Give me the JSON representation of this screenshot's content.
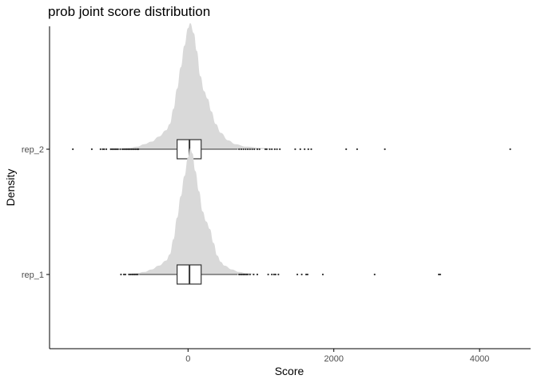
{
  "chart_data": {
    "type": "ridgeline-boxplot",
    "title": "prob joint score distribution",
    "xlabel": "Score",
    "ylabel": "Density",
    "xlim": [
      -1900,
      4700
    ],
    "x_ticks": [
      0,
      2000,
      4000
    ],
    "categories": [
      "rep_1",
      "rep_2"
    ],
    "grid": false,
    "density_color": "#d9d9d9",
    "box_stroke": "#333333",
    "outlier_color": "#333333",
    "series": [
      {
        "name": "rep_1",
        "box": {
          "q1": -150,
          "median": 20,
          "q3": 180,
          "whisker_low": -670,
          "whisker_high": 680
        },
        "density": [
          [
            -900,
            0.0
          ],
          [
            -700,
            0.01
          ],
          [
            -600,
            0.02
          ],
          [
            -500,
            0.04
          ],
          [
            -400,
            0.07
          ],
          [
            -300,
            0.11
          ],
          [
            -250,
            0.16
          ],
          [
            -200,
            0.28
          ],
          [
            -150,
            0.45
          ],
          [
            -100,
            0.62
          ],
          [
            -50,
            0.78
          ],
          [
            0,
            0.93
          ],
          [
            30,
            1.0
          ],
          [
            60,
            0.96
          ],
          [
            100,
            0.82
          ],
          [
            150,
            0.66
          ],
          [
            200,
            0.5
          ],
          [
            250,
            0.42
          ],
          [
            300,
            0.36
          ],
          [
            350,
            0.25
          ],
          [
            400,
            0.15
          ],
          [
            450,
            0.1
          ],
          [
            500,
            0.07
          ],
          [
            600,
            0.04
          ],
          [
            700,
            0.02
          ],
          [
            800,
            0.01
          ],
          [
            1000,
            0.0
          ]
        ],
        "outliers": [
          -920,
          -880,
          -860,
          -810,
          -790,
          -770,
          -750,
          -730,
          -710,
          -690,
          700,
          720,
          740,
          760,
          780,
          800,
          820,
          850,
          900,
          950,
          1100,
          1150,
          1180,
          1200,
          1240,
          1500,
          1560,
          1620,
          1640,
          1850,
          2560,
          3440,
          3460
        ]
      },
      {
        "name": "rep_2",
        "box": {
          "q1": -150,
          "median": 20,
          "q3": 180,
          "whisker_low": -670,
          "whisker_high": 680
        },
        "density": [
          [
            -1000,
            0.0
          ],
          [
            -800,
            0.01
          ],
          [
            -700,
            0.02
          ],
          [
            -600,
            0.04
          ],
          [
            -500,
            0.06
          ],
          [
            -400,
            0.1
          ],
          [
            -300,
            0.15
          ],
          [
            -250,
            0.2
          ],
          [
            -200,
            0.32
          ],
          [
            -150,
            0.48
          ],
          [
            -100,
            0.65
          ],
          [
            -50,
            0.82
          ],
          [
            0,
            0.96
          ],
          [
            30,
            1.0
          ],
          [
            80,
            0.92
          ],
          [
            120,
            0.78
          ],
          [
            170,
            0.58
          ],
          [
            220,
            0.46
          ],
          [
            270,
            0.4
          ],
          [
            320,
            0.3
          ],
          [
            380,
            0.2
          ],
          [
            450,
            0.13
          ],
          [
            550,
            0.07
          ],
          [
            650,
            0.04
          ],
          [
            800,
            0.02
          ],
          [
            1000,
            0.01
          ],
          [
            1200,
            0.0
          ]
        ],
        "outliers": [
          -1580,
          -1320,
          -1200,
          -1170,
          -1150,
          -1120,
          -1060,
          -1040,
          -1020,
          -1000,
          -980,
          -960,
          -930,
          -900,
          -880,
          -860,
          -840,
          -820,
          -800,
          -780,
          -760,
          -740,
          -720,
          -700,
          -690,
          -680,
          700,
          730,
          760,
          790,
          820,
          850,
          880,
          910,
          950,
          980,
          1060,
          1080,
          1120,
          1150,
          1190,
          1220,
          1260,
          1470,
          1540,
          1600,
          1650,
          1690,
          2170,
          2320,
          2700,
          4420
        ]
      }
    ]
  }
}
